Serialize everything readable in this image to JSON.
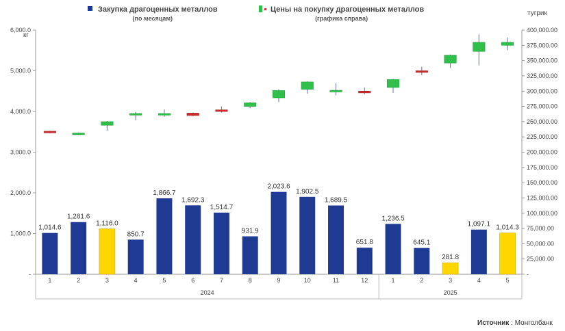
{
  "legend": {
    "bars_label": "Закупка драгоценных металлов",
    "bars_sub": "(по месяцам)",
    "prices_label": "Цены на покупку драгоценных металлов",
    "prices_sub": "(графика справа)"
  },
  "units": {
    "left": "кг",
    "right": "тугрик"
  },
  "source": {
    "label": "Источник",
    "value": " : Монголбанк"
  },
  "colors": {
    "bar_blue": "#1f3a93",
    "bar_yellow": "#ffd700",
    "candle_up": "#2fbf4a",
    "candle_down": "#cc2b2b",
    "wick": "#7a86b8"
  },
  "chart_data": {
    "type": "bar",
    "categories": [
      "1",
      "2",
      "3",
      "4",
      "5",
      "6",
      "7",
      "8",
      "9",
      "10",
      "11",
      "12",
      "1",
      "2",
      "3",
      "4",
      "5"
    ],
    "groups": [
      {
        "label": "2024",
        "count": 12
      },
      {
        "label": "2025",
        "count": 5
      }
    ],
    "values": [
      1014.6,
      1281.6,
      1116.0,
      850.7,
      1866.7,
      1692.3,
      1514.7,
      931.9,
      2023.6,
      1902.5,
      1689.5,
      651.8,
      1236.5,
      645.1,
      281.8,
      1097.1,
      1014.3
    ],
    "value_labels": [
      "1,014.6",
      "1,281.6",
      "1,116.0",
      "850.7",
      "1,866.7",
      "1,692.3",
      "1,514.7",
      "931.9",
      "2,023.6",
      "1,902.5",
      "1,689.5",
      "651.8",
      "1,236.5",
      "645.1",
      "281.8",
      "1,097.1",
      "1,014.3"
    ],
    "highlighted": [
      false,
      false,
      true,
      false,
      false,
      false,
      false,
      false,
      false,
      false,
      false,
      false,
      false,
      false,
      true,
      false,
      true
    ],
    "ylim": [
      0,
      6000
    ],
    "yticks": [
      "-",
      "1,000.0",
      "2,000.0",
      "3,000.0",
      "4,000.0",
      "5,000.0",
      "6,000.0"
    ],
    "y2lim": [
      0,
      400000
    ],
    "y2ticks": [
      "-",
      "25,000.00",
      "50,000.00",
      "75,000.00",
      "100,000.00",
      "125,000.00",
      "150,000.00",
      "175,000.00",
      "200,000.00",
      "225,000.00",
      "250,000.00",
      "275,000.00",
      "300,000.00",
      "325,000.00",
      "350,000.00",
      "375,000.00",
      "400,000.00"
    ],
    "price_candles": [
      {
        "open": 234000,
        "close": 232000,
        "high": 235000,
        "low": 231000
      },
      {
        "open": 229500,
        "close": 230500,
        "high": 232500,
        "low": 228500
      },
      {
        "open": 244000,
        "close": 250000,
        "high": 251000,
        "low": 235000
      },
      {
        "open": 262000,
        "close": 262000,
        "high": 266000,
        "low": 252000
      },
      {
        "open": 261000,
        "close": 263000,
        "high": 270000,
        "low": 258000
      },
      {
        "open": 264000,
        "close": 260000,
        "high": 265000,
        "low": 259000
      },
      {
        "open": 269000,
        "close": 267000,
        "high": 275000,
        "low": 265000
      },
      {
        "open": 275000,
        "close": 281000,
        "high": 282000,
        "low": 272000
      },
      {
        "open": 289000,
        "close": 301000,
        "high": 303000,
        "low": 282000
      },
      {
        "open": 303000,
        "close": 315000,
        "high": 316000,
        "low": 296000
      },
      {
        "open": 300000,
        "close": 300000,
        "high": 313000,
        "low": 293000
      },
      {
        "open": 300000,
        "close": 297000,
        "high": 306000,
        "low": 295000
      },
      {
        "open": 306000,
        "close": 319000,
        "high": 320000,
        "low": 297000
      },
      {
        "open": 333000,
        "close": 331000,
        "high": 340000,
        "low": 326000
      },
      {
        "open": 346000,
        "close": 359000,
        "high": 360000,
        "low": 338000
      },
      {
        "open": 365000,
        "close": 380000,
        "high": 393000,
        "low": 342000
      },
      {
        "open": 375000,
        "close": 380000,
        "high": 388000,
        "low": 367000
      }
    ]
  }
}
